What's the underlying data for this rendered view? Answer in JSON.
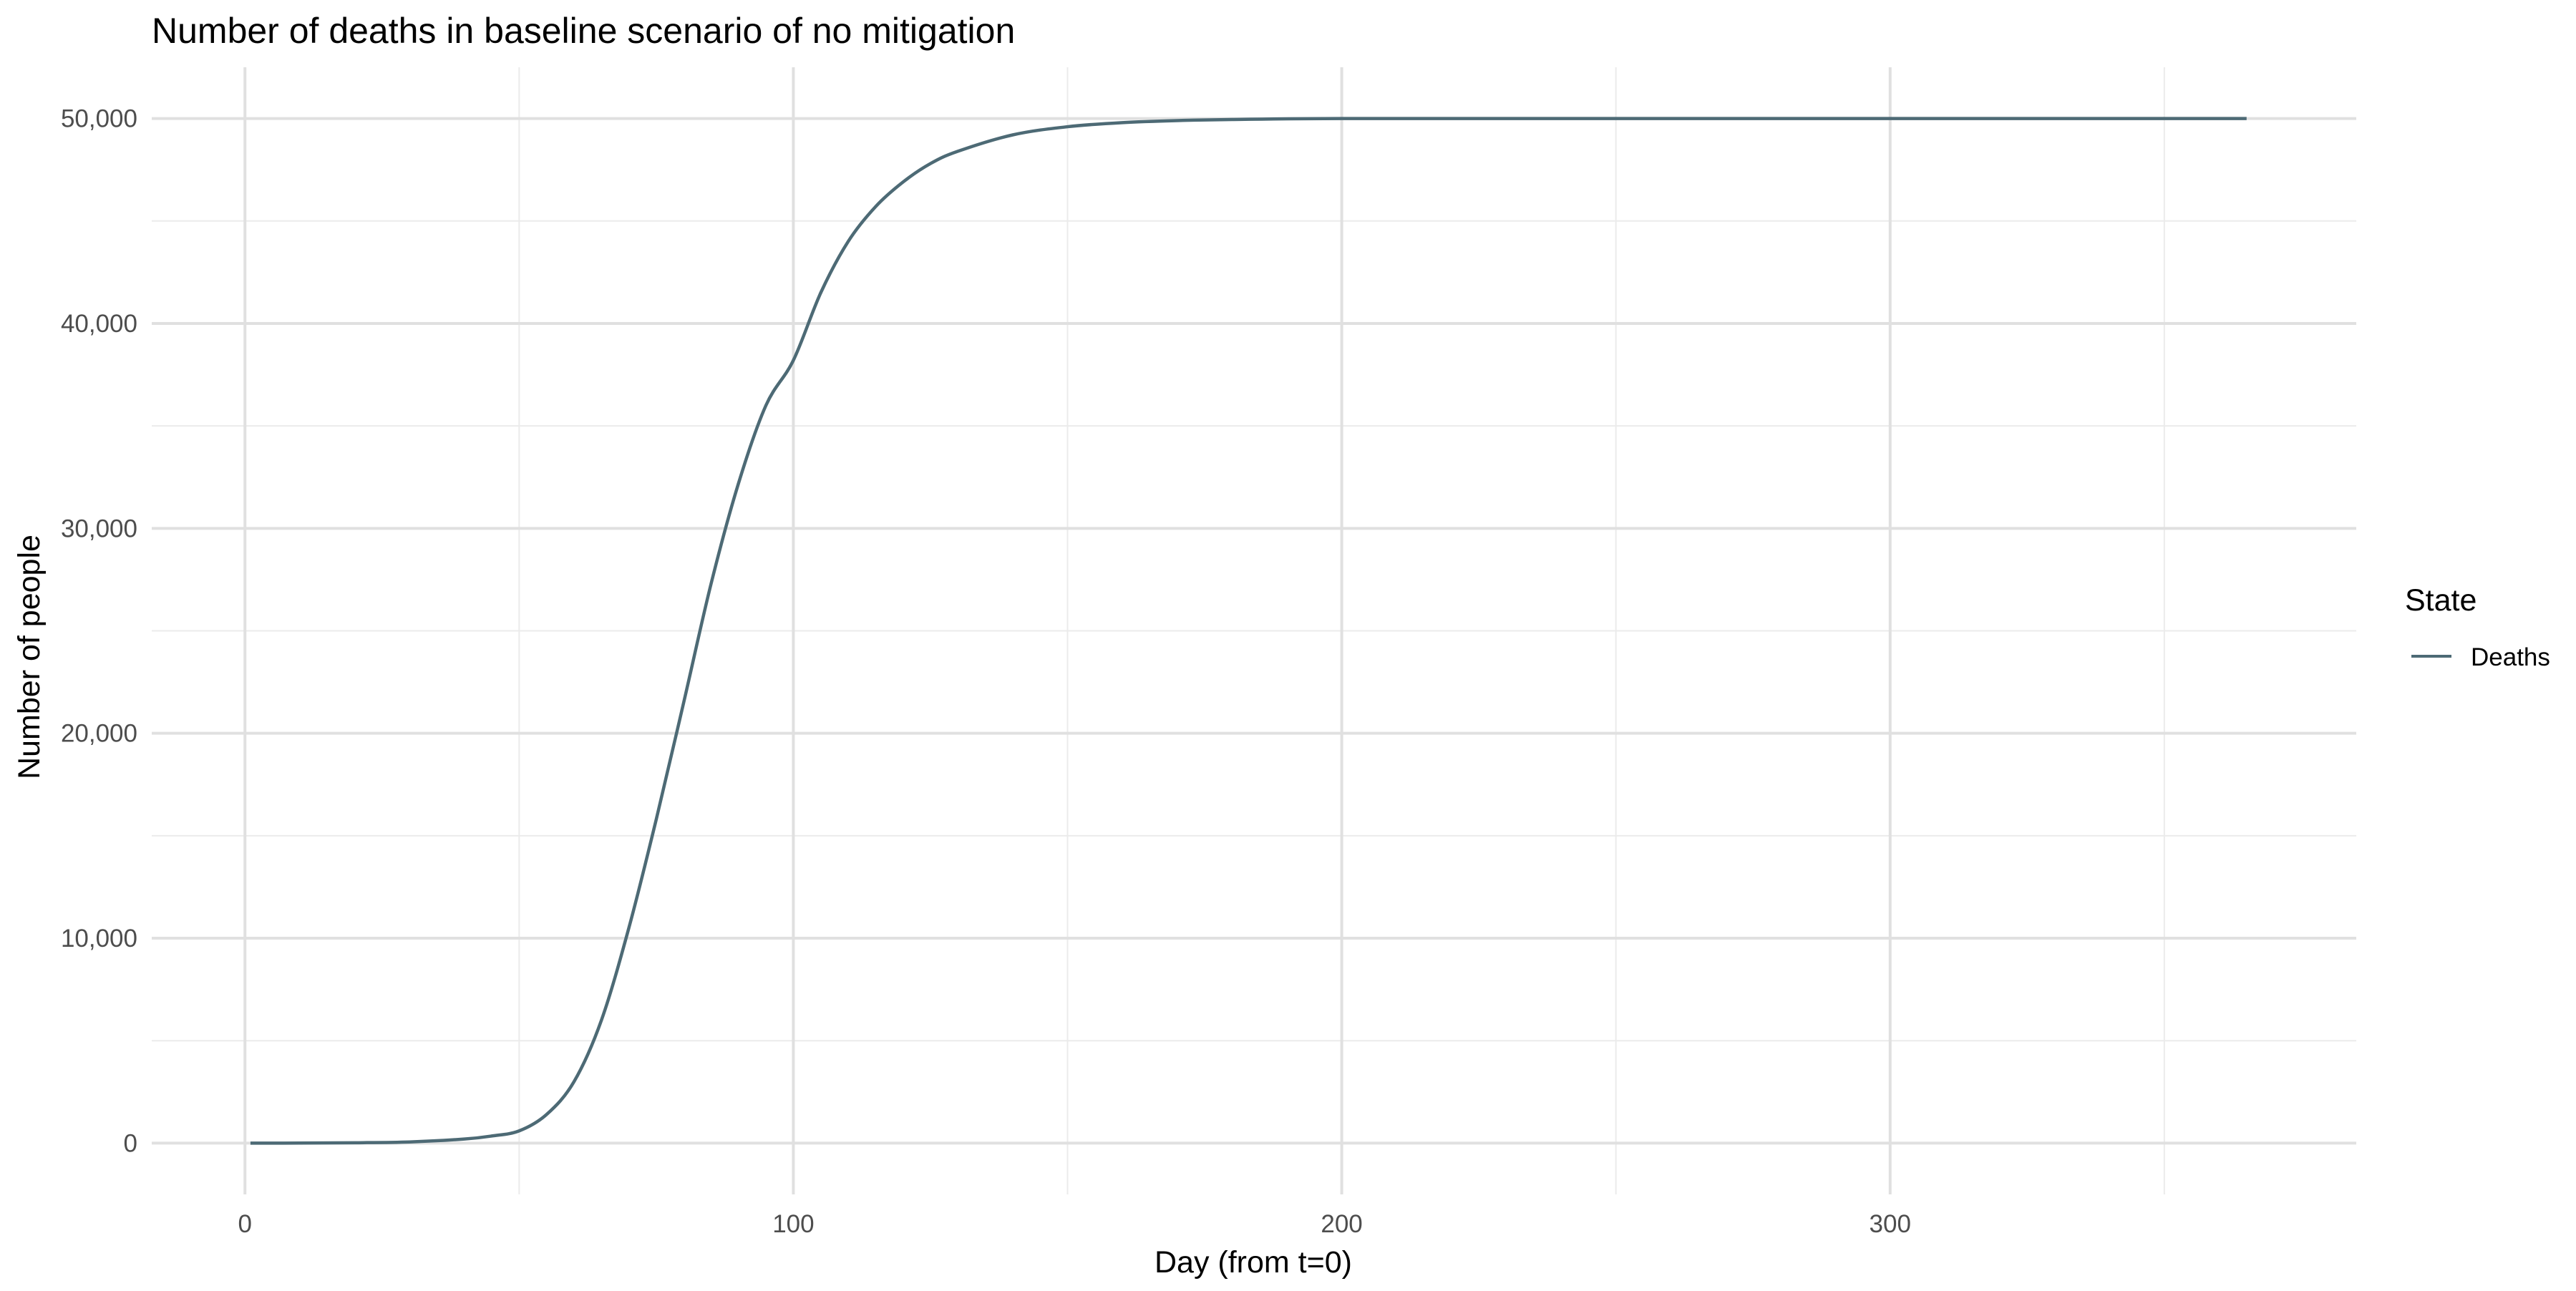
{
  "chart_data": {
    "type": "line",
    "title": "Number of deaths in baseline scenario of no mitigation",
    "xlabel": "Day (from t=0)",
    "ylabel": "Number of people",
    "xlim": [
      -17,
      385
    ],
    "ylim": [
      -2500,
      52500
    ],
    "x_ticks": [
      0,
      100,
      200,
      300
    ],
    "x_tick_labels": [
      "0",
      "100",
      "200",
      "300"
    ],
    "y_ticks": [
      0,
      10000,
      20000,
      30000,
      40000,
      50000
    ],
    "y_tick_labels": [
      "0",
      "10,000",
      "20,000",
      "30,000",
      "40,000",
      "50,000"
    ],
    "grid": true,
    "legend": {
      "title": "State",
      "position": "right"
    },
    "series": [
      {
        "name": "Deaths",
        "color": "#4d6a75",
        "x": [
          1,
          10,
          20,
          30,
          40,
          45,
          50,
          55,
          60,
          65,
          70,
          75,
          80,
          85,
          90,
          95,
          100,
          105,
          110,
          115,
          120,
          125,
          130,
          140,
          150,
          160,
          170,
          180,
          200,
          250,
          300,
          365
        ],
        "y": [
          0,
          5,
          20,
          60,
          200,
          350,
          600,
          1400,
          3000,
          6000,
          10500,
          15800,
          21500,
          27300,
          32200,
          36000,
          38200,
          41500,
          44000,
          45700,
          46900,
          47800,
          48400,
          49200,
          49600,
          49800,
          49900,
          49950,
          50000,
          50000,
          50000,
          50000
        ]
      }
    ]
  }
}
